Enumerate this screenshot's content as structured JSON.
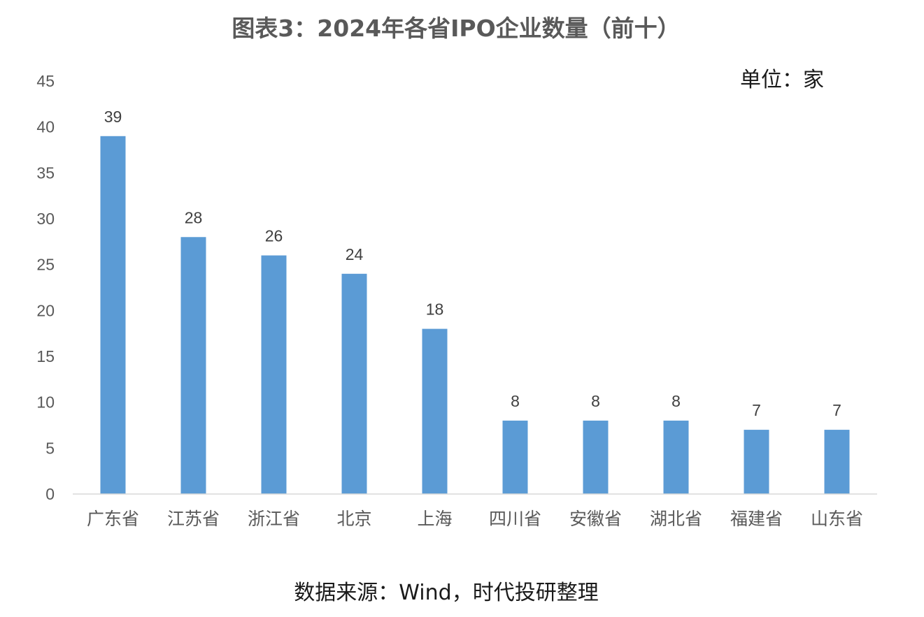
{
  "chart_data": {
    "type": "bar",
    "title": "图表3：2024年各省IPO企业数量（前十）",
    "unit_label": "单位：家",
    "source": "数据来源：Wind，时代投研整理",
    "categories": [
      "广东省",
      "江苏省",
      "浙江省",
      "北京",
      "上海",
      "四川省",
      "安徽省",
      "湖北省",
      "福建省",
      "山东省"
    ],
    "values": [
      39,
      28,
      26,
      24,
      18,
      8,
      8,
      8,
      7,
      7
    ],
    "ylim": [
      0,
      45
    ],
    "yticks": [
      0,
      5,
      10,
      15,
      20,
      25,
      30,
      35,
      40,
      45
    ],
    "bar_color": "#5b9bd5",
    "grid": false,
    "legend": "none"
  }
}
